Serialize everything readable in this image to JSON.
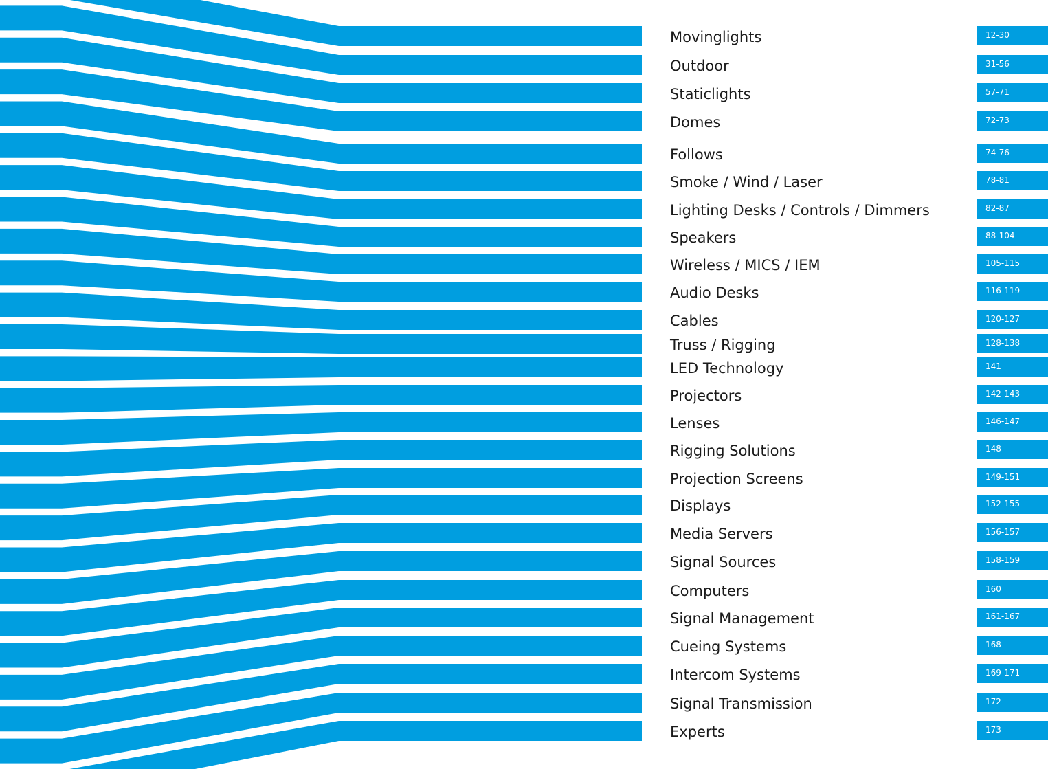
{
  "colors": {
    "accent": "#009ee0",
    "text": "#1b1b1b",
    "page_label_text": "#ffffff"
  },
  "toc": {
    "entries": [
      {
        "label": "Movinglights",
        "pages": "12-30"
      },
      {
        "label": "Outdoor",
        "pages": "31-56"
      },
      {
        "label": "Staticlights",
        "pages": "57-71"
      },
      {
        "label": "Domes",
        "pages": "72-73"
      },
      {
        "label": "Follows",
        "pages": "74-76"
      },
      {
        "label": "Smoke / Wind / Laser",
        "pages": "78-81"
      },
      {
        "label": "Lighting Desks / Controls / Dimmers",
        "pages": "82-87"
      },
      {
        "label": "Speakers",
        "pages": "88-104"
      },
      {
        "label": "Wireless / MICS / IEM",
        "pages": "105-115"
      },
      {
        "label": "Audio Desks",
        "pages": "116-119"
      },
      {
        "label": "Cables",
        "pages": "120-127"
      },
      {
        "label": "Truss / Rigging",
        "pages": "128-138"
      },
      {
        "label": "LED Technology",
        "pages": "141"
      },
      {
        "label": "Projectors",
        "pages": "142-143"
      },
      {
        "label": "Lenses",
        "pages": "146-147"
      },
      {
        "label": "Rigging Solutions",
        "pages": "148"
      },
      {
        "label": "Projection Screens",
        "pages": "149-151"
      },
      {
        "label": "Displays",
        "pages": "152-155"
      },
      {
        "label": "Media Servers",
        "pages": "156-157"
      },
      {
        "label": "Signal Sources",
        "pages": "158-159"
      },
      {
        "label": "Computers",
        "pages": "160"
      },
      {
        "label": "Signal Management",
        "pages": "161-167"
      },
      {
        "label": "Cueing Systems",
        "pages": "168"
      },
      {
        "label": "Intercom Systems",
        "pages": "169-171"
      },
      {
        "label": "Signal Transmission",
        "pages": "172"
      },
      {
        "label": "Experts",
        "pages": "173"
      }
    ]
  }
}
